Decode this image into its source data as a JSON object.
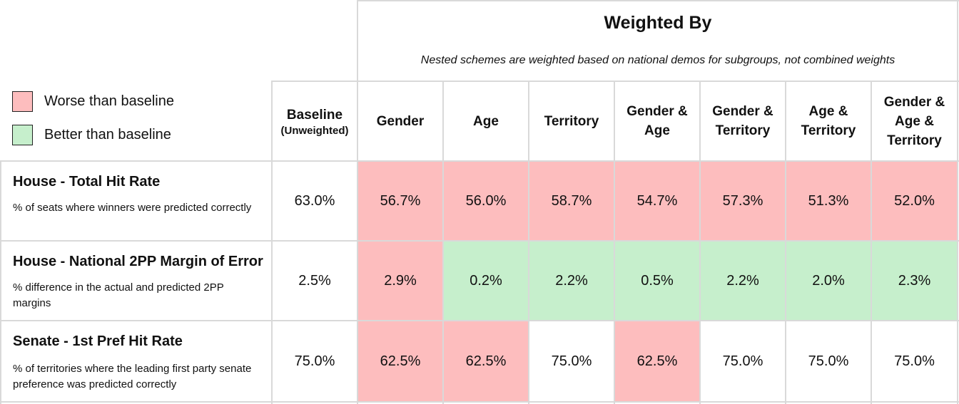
{
  "header": {
    "title": "Weighted By",
    "subtitle": "Nested schemes are weighted based on national demos for subgroups, not combined weights"
  },
  "legend": {
    "worse": {
      "label": "Worse than baseline",
      "color": "#fdbdbe"
    },
    "better": {
      "label": "Better than baseline",
      "color": "#c6efcc"
    }
  },
  "columns": [
    {
      "label": "Baseline",
      "sub": "(Unweighted)"
    },
    {
      "label": "Gender"
    },
    {
      "label": "Age"
    },
    {
      "label": "Territory"
    },
    {
      "label": "Gender & Age"
    },
    {
      "label": "Gender & Territory"
    },
    {
      "label": "Age & Territory"
    },
    {
      "label": "Gender & Age & Territory"
    }
  ],
  "rows": [
    {
      "title": "House - Total Hit Rate",
      "desc": "% of seats where winners were predicted correctly",
      "values": [
        "63.0%",
        "56.7%",
        "56.0%",
        "58.7%",
        "54.7%",
        "57.3%",
        "51.3%",
        "52.0%"
      ],
      "status": [
        "none",
        "worse",
        "worse",
        "worse",
        "worse",
        "worse",
        "worse",
        "worse"
      ]
    },
    {
      "title": "House - National 2PP Margin of Error",
      "desc": "% difference in the actual and predicted 2PP margins",
      "values": [
        "2.5%",
        "2.9%",
        "0.2%",
        "2.2%",
        "0.5%",
        "2.2%",
        "2.0%",
        "2.3%"
      ],
      "status": [
        "none",
        "worse",
        "better",
        "better",
        "better",
        "better",
        "better",
        "better"
      ]
    },
    {
      "title": "Senate - 1st Pref Hit Rate",
      "desc": "% of territories where the leading first party senate preference was predicted correctly",
      "values": [
        "75.0%",
        "62.5%",
        "62.5%",
        "75.0%",
        "62.5%",
        "75.0%",
        "75.0%",
        "75.0%"
      ],
      "status": [
        "none",
        "worse",
        "worse",
        "none",
        "worse",
        "none",
        "none",
        "none"
      ]
    }
  ]
}
